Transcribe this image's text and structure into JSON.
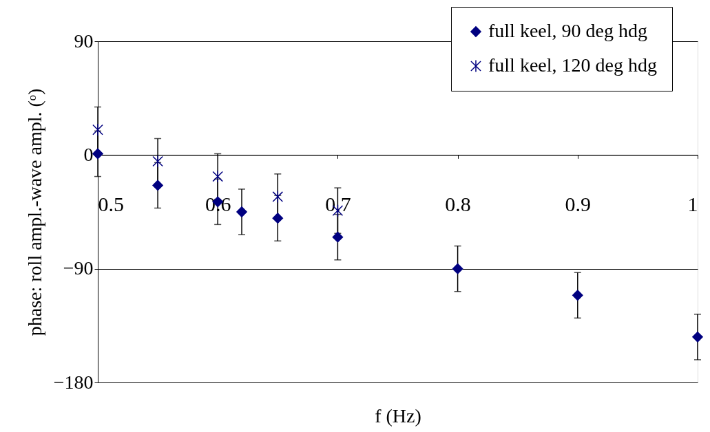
{
  "chart_data": {
    "type": "scatter",
    "xlabel": "f (Hz)",
    "ylabel": "phase: roll ampl.-wave ampl. (ᵒ)",
    "series": [
      {
        "name": "full keel,   90 deg hdg",
        "color": "#000080",
        "marker": "diamond",
        "x": [
          0.5,
          0.55,
          0.6,
          0.62,
          0.65,
          0.7,
          0.8,
          0.9,
          1.0
        ],
        "values": [
          1,
          -24,
          -37,
          -45,
          -50,
          -65,
          -90,
          -111,
          -144
        ],
        "errors": [
          18,
          18,
          18,
          18,
          18,
          18,
          18,
          18,
          18
        ]
      },
      {
        "name": "full keel, 120 deg hdg",
        "color": "#000080",
        "marker": "cross",
        "x": [
          0.5,
          0.55,
          0.6,
          0.65,
          0.7
        ],
        "values": [
          20,
          -5,
          -17,
          -33,
          -44
        ],
        "errors": [
          18,
          18,
          18,
          18,
          18
        ]
      }
    ],
    "xlim": [
      0.5,
      1
    ],
    "xticks": [
      0.5,
      0.6,
      0.7,
      0.8,
      0.9,
      1
    ],
    "ylim": [
      -180,
      90
    ],
    "yticks": [
      -180,
      -90,
      0,
      90
    ],
    "grid": "y",
    "legend": "top right"
  }
}
